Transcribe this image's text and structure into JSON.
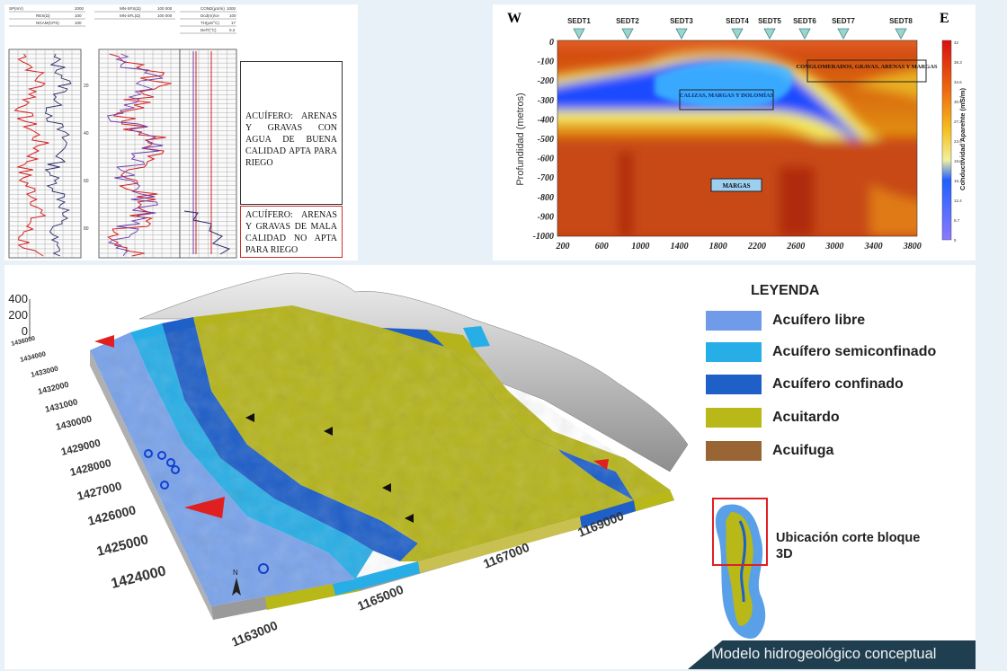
{
  "logs_panel": {
    "top_labels": [
      [
        "SP(mV)",
        "2000",
        "RES(Ω)",
        "100",
        "NGAM(CPS)",
        "100"
      ],
      [
        "MN-SFS(Ω)",
        "100 000",
        "MN-SFL(Ω)",
        "100 000"
      ],
      [
        "COND(μS/m)",
        "1000",
        "Dcd(m)/ce",
        "100",
        "TH(μS/°C)",
        "17",
        "DelT(°C)",
        "0.2"
      ]
    ],
    "depth_ticks": [
      "20",
      "40",
      "60",
      "80"
    ],
    "box_good_text": "ACUÍFERO: ARENAS Y GRAVAS CON AGUA DE BUENA CALIDAD APTA PARA RIEGO",
    "box_bad_text": "ACUÍFERO: ARENAS Y GRAVAS DE MALA CALIDAD NO APTA PARA RIEGO"
  },
  "section_panel": {
    "west": "W",
    "east": "E",
    "stations": [
      "SEDT1",
      "SEDT2",
      "SEDT3",
      "SEDT4",
      "SEDT5",
      "SEDT6",
      "SEDT7",
      "SEDT8"
    ],
    "ylabel": "Profundidad (metros)",
    "y_ticks": [
      "0",
      "-100",
      "-200",
      "-300",
      "-400",
      "-500",
      "-600",
      "-700",
      "-800",
      "-900",
      "-1000"
    ],
    "x_ticks": [
      "200",
      "600",
      "1000",
      "1400",
      "1800",
      "2200",
      "2600",
      "3000",
      "3400",
      "3800"
    ],
    "labels": {
      "conglomerados": "CONGLOMERADOS, GRAVAS, ARENAS Y MARGAS",
      "calizas": "CALIZAS, MARGAS Y DOLOMÍAS",
      "margas": "MARGAS"
    },
    "colorbar_title": "Conductividad Aparente (mS/m)",
    "colorbar_ticks": [
      "42",
      "38.3",
      "34.6",
      "30.9",
      "27.2",
      "23.5",
      "19.8",
      "16.1",
      "12.4",
      "8.7",
      "5"
    ]
  },
  "model_panel": {
    "z_ticks": [
      "400",
      "200",
      "0"
    ],
    "north_ticks": [
      "1436000",
      "1434000",
      "1433000",
      "1432000",
      "1431000",
      "1430000",
      "1429000",
      "1428000",
      "1427000",
      "1426000",
      "1425000",
      "1424000"
    ],
    "east_ticks": [
      "1163000",
      "1165000",
      "1167000",
      "1169000"
    ],
    "north_arrow": "N",
    "legend_title": "LEYENDA",
    "legend": [
      {
        "label": "Acuífero libre",
        "color": "#6f9be8"
      },
      {
        "label": "Acuífero semiconfinado",
        "color": "#28aee6"
      },
      {
        "label": "Acuífero confinado",
        "color": "#1f5fc8"
      },
      {
        "label": "Acuitardo",
        "color": "#b8b818"
      },
      {
        "label": "Acuifuga",
        "color": "#9a6535"
      }
    ],
    "location_caption": "Ubicación corte bloque 3D",
    "footer": "Modelo hidrogeológico conceptual"
  }
}
